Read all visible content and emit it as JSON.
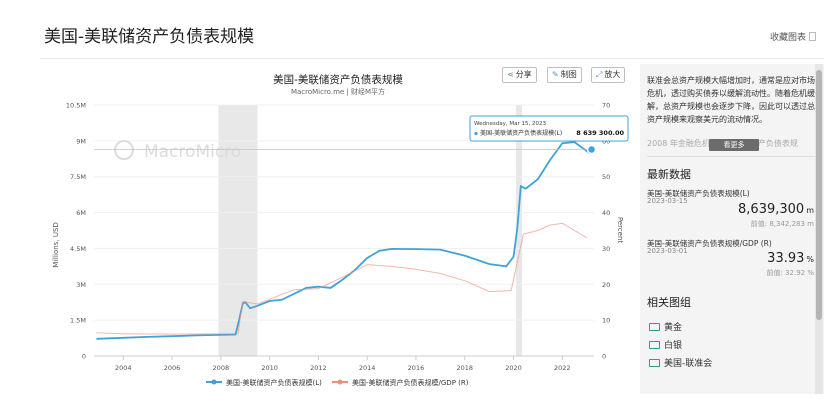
{
  "page": {
    "title": "美国-美联储资产负债表规模",
    "collect_label": "收藏图表"
  },
  "chart": {
    "title": "美国-美联储资产负债表规模",
    "subtitle": "MacroMicro.me | 财经M平方",
    "watermark": "MacroMicro",
    "buttons": {
      "share": "分享",
      "edit": "制图",
      "zoom": "放大"
    },
    "tooltip": {
      "date": "Wednesday, Mar 15, 2023",
      "series": "美国-美联储资产负债表规模(L)",
      "value": "8 639 300.00"
    },
    "legend": [
      "美国-美联储资产负债表规模(L)",
      "美国-美联储资产负债表规模/GDP (R)"
    ],
    "ylabel_left": "Millions, USD",
    "ylabel_right": "Percent",
    "left_ticks": [
      "0",
      "1.5M",
      "3M",
      "4.5M",
      "6M",
      "7.5M",
      "9M",
      "10.5M"
    ],
    "right_ticks": [
      "0",
      "10",
      "20",
      "30",
      "40",
      "50",
      "60",
      "70"
    ],
    "x_ticks": [
      "2004",
      "2006",
      "2008",
      "2010",
      "2012",
      "2014",
      "2016",
      "2018",
      "2020",
      "2022"
    ],
    "colors": {
      "series1": "#3fa3d8",
      "series2": "#f08f7f",
      "shade": "#e8e8e8"
    }
  },
  "chart_data": {
    "type": "line",
    "title": "美国-美联储资产负债表规模",
    "ylabel": "Millions, USD",
    "y2label": "Percent",
    "ylim": [
      0,
      10500000
    ],
    "y2lim": [
      0,
      70
    ],
    "xlim": [
      2002.8,
      2023.3
    ],
    "recessions": [
      [
        2007.9,
        2009.5
      ],
      [
        2020.1,
        2020.35
      ]
    ],
    "series": [
      {
        "name": "美国-美联储资产负债表规模(L)",
        "axis": "left",
        "x": [
          2002.9,
          2004,
          2005,
          2006,
          2007,
          2008.6,
          2008.75,
          2008.9,
          2009.0,
          2009.2,
          2009.5,
          2010,
          2010.5,
          2011,
          2011.5,
          2012,
          2012.5,
          2013,
          2013.5,
          2014,
          2014.5,
          2015,
          2016,
          2017,
          2018,
          2019,
          2019.7,
          2020.0,
          2020.15,
          2020.3,
          2020.5,
          2021,
          2021.5,
          2022,
          2022.5,
          2022.9,
          2023.1,
          2023.2
        ],
        "y": [
          720000,
          760000,
          800000,
          830000,
          860000,
          900000,
          1500000,
          2200000,
          2250000,
          2000000,
          2100000,
          2300000,
          2350000,
          2600000,
          2850000,
          2900000,
          2850000,
          3200000,
          3600000,
          4100000,
          4400000,
          4480000,
          4470000,
          4450000,
          4200000,
          3850000,
          3750000,
          4150000,
          5300000,
          7100000,
          7000000,
          7400000,
          8200000,
          8900000,
          8950000,
          8650000,
          8500000,
          8639300
        ]
      },
      {
        "name": "美国-美联储资产负债表规模/GDP (R)",
        "axis": "right",
        "x": [
          2002.9,
          2004,
          2006,
          2008.7,
          2008.9,
          2009.5,
          2011,
          2012,
          2013,
          2014,
          2015,
          2016,
          2017,
          2018,
          2019,
          2019.9,
          2020.2,
          2020.4,
          2021,
          2021.5,
          2022,
          2022.5,
          2023.0
        ],
        "y": [
          6.5,
          6.2,
          6.1,
          6.2,
          15.2,
          14.5,
          18.5,
          18.8,
          22.0,
          25.5,
          25.0,
          24.2,
          23.0,
          21.0,
          18.0,
          18.2,
          27.5,
          34.0,
          35.0,
          36.5,
          37.0,
          35.0,
          33.0
        ]
      }
    ]
  },
  "sidebar": {
    "description": "联准会总资产规模大幅增加时，通常是应对市场危机，透过购买债券以缓解流动性。随着危机缓解，总资产规模也会逐步下降，因此可以透过总资产规模来观察美元的流动情况。",
    "fade_text": "2008 年金融危机后，联准会资产负债表规",
    "more_label": "看更多",
    "latest_title": "最新数据",
    "items": [
      {
        "label": "美国-美联储资产负债表规模(L)",
        "date": "2023-03-15",
        "value": "8,639,300",
        "unit": "m",
        "prev": "前值: 8,342,283  m"
      },
      {
        "label": "美国-美联储资产负债表规模/GDP (R)",
        "date": "2023-03-01",
        "value": "33.93",
        "unit": "%",
        "prev": "前值: 32.92  %"
      }
    ],
    "groups_title": "相关图组",
    "groups": [
      "黄金",
      "白银",
      "美国-联准会"
    ]
  }
}
